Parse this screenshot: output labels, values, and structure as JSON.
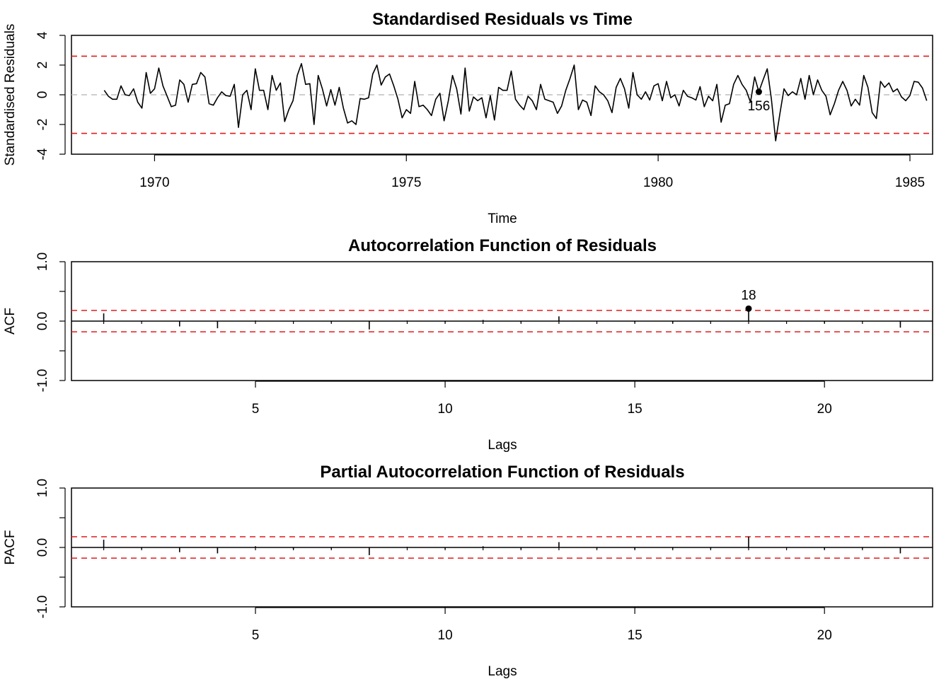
{
  "colors": {
    "line": "#000000",
    "bound": "#e41a1c",
    "zero": "#bebebe"
  },
  "chart_data": [
    {
      "type": "line",
      "title": "Standardised Residuals vs Time",
      "xlabel": "Time",
      "ylabel": "Standardised Residuals",
      "xlim": [
        1968.35,
        1985.45
      ],
      "ylim": [
        -4,
        4
      ],
      "x_ticks": [
        1970,
        1975,
        1980,
        1985
      ],
      "y_ticks": [
        -4,
        -2,
        0,
        2,
        4
      ],
      "zero_line": 0,
      "bounds": [
        -2.6,
        2.6
      ],
      "start": 1969.0,
      "step": 0.08333,
      "values": [
        0.3,
        -0.1,
        -0.3,
        -0.3,
        0.6,
        0.0,
        -0.05,
        0.4,
        -0.5,
        -0.9,
        1.5,
        0.1,
        0.4,
        1.8,
        0.6,
        -0.1,
        -0.8,
        -0.7,
        1.0,
        0.7,
        -0.5,
        0.7,
        0.75,
        1.5,
        1.2,
        -0.6,
        -0.7,
        -0.2,
        0.2,
        -0.05,
        -0.1,
        0.7,
        -2.2,
        0.0,
        0.3,
        -1.0,
        1.75,
        0.3,
        0.3,
        -1.0,
        1.3,
        0.3,
        0.8,
        -1.8,
        -1.0,
        -0.4,
        1.3,
        2.1,
        0.7,
        0.75,
        -2.0,
        1.3,
        0.4,
        -0.75,
        0.35,
        -0.7,
        0.5,
        -0.9,
        -1.9,
        -1.75,
        -2.0,
        -0.25,
        -0.3,
        -0.2,
        1.4,
        2.0,
        0.65,
        1.2,
        1.4,
        0.6,
        -0.3,
        -1.55,
        -1.0,
        -1.25,
        0.9,
        -0.8,
        -0.7,
        -1.0,
        -1.4,
        -0.3,
        0.1,
        -1.75,
        -0.4,
        1.3,
        0.4,
        -1.3,
        1.8,
        -1.1,
        -0.15,
        -0.4,
        -0.2,
        -1.55,
        -0.05,
        -1.7,
        0.5,
        0.3,
        0.3,
        1.6,
        -0.3,
        -0.7,
        -1.0,
        -0.1,
        -0.4,
        -1.0,
        0.7,
        -0.3,
        -0.4,
        -0.5,
        -1.25,
        -0.75,
        0.3,
        1.1,
        2.0,
        -1.0,
        -0.35,
        -0.5,
        -1.4,
        0.6,
        0.2,
        0.0,
        -0.4,
        -1.2,
        0.5,
        1.1,
        0.4,
        -0.9,
        1.5,
        0.0,
        -0.3,
        0.2,
        -0.35,
        0.6,
        0.75,
        -0.4,
        0.9,
        -0.2,
        0.0,
        -0.75,
        0.3,
        -0.1,
        -0.2,
        -0.35,
        0.55,
        -0.8,
        -0.1,
        -0.4,
        0.7,
        -1.85,
        -0.7,
        -0.6,
        0.7,
        1.3,
        0.7,
        0.3,
        -0.5,
        1.2,
        0.2,
        1.0,
        1.75,
        -0.3,
        -3.1,
        -1.3,
        0.4,
        -0.05,
        0.2,
        0.0,
        1.1,
        -0.3,
        1.3,
        0.0,
        1.0,
        0.3,
        -0.1,
        -1.35,
        -0.6,
        0.3,
        0.9,
        0.3,
        -0.75,
        -0.3,
        -0.7,
        1.3,
        0.5,
        -1.2,
        -1.6,
        0.9,
        0.5,
        0.8,
        0.2,
        0.4,
        -0.15,
        -0.4,
        -0.05,
        0.9,
        0.85,
        0.45,
        -0.4
      ],
      "highlight": {
        "index": 156,
        "label": "156"
      }
    },
    {
      "type": "bar",
      "title": "Autocorrelation Function of Residuals",
      "xlabel": "Lags",
      "ylabel": "ACF",
      "xlim": [
        0.15,
        22.85
      ],
      "ylim": [
        -1,
        1
      ],
      "x_ticks": [
        5,
        10,
        15,
        20
      ],
      "y_ticks": [
        -1.0,
        -0.5,
        0.0,
        0.5,
        1.0
      ],
      "y_tick_labels": [
        "-1.0",
        "",
        "0.0",
        "",
        "1.0"
      ],
      "zero_line": 0,
      "bounds": [
        -0.18,
        0.18
      ],
      "lags": [
        1,
        2,
        3,
        4,
        5,
        6,
        7,
        8,
        9,
        10,
        11,
        12,
        13,
        14,
        15,
        16,
        17,
        18,
        19,
        20,
        21,
        22
      ],
      "values": [
        0.13,
        -0.01,
        -0.09,
        -0.12,
        0.01,
        -0.01,
        -0.02,
        -0.14,
        0.01,
        -0.02,
        0.02,
        -0.02,
        0.08,
        -0.01,
        -0.02,
        -0.03,
        -0.01,
        0.21,
        -0.01,
        -0.03,
        -0.01,
        -0.11
      ],
      "highlight": {
        "lag": 18,
        "label": "18"
      }
    },
    {
      "type": "bar",
      "title": "Partial Autocorrelation Function of Residuals",
      "xlabel": "Lags",
      "ylabel": "PACF",
      "xlim": [
        0.15,
        22.85
      ],
      "ylim": [
        -1,
        1
      ],
      "x_ticks": [
        5,
        10,
        15,
        20
      ],
      "y_ticks": [
        -1.0,
        -0.5,
        0.0,
        0.5,
        1.0
      ],
      "y_tick_labels": [
        "-1.0",
        "",
        "0.0",
        "",
        "1.0"
      ],
      "zero_line": 0,
      "bounds": [
        -0.18,
        0.18
      ],
      "lags": [
        1,
        2,
        3,
        4,
        5,
        6,
        7,
        8,
        9,
        10,
        11,
        12,
        13,
        14,
        15,
        16,
        17,
        18,
        19,
        20,
        21,
        22
      ],
      "values": [
        0.13,
        -0.02,
        -0.08,
        -0.1,
        0.02,
        -0.03,
        -0.02,
        -0.13,
        0.01,
        -0.02,
        0.02,
        -0.03,
        0.09,
        -0.02,
        -0.03,
        -0.02,
        -0.02,
        0.18,
        -0.01,
        -0.03,
        -0.02,
        -0.1
      ]
    }
  ]
}
